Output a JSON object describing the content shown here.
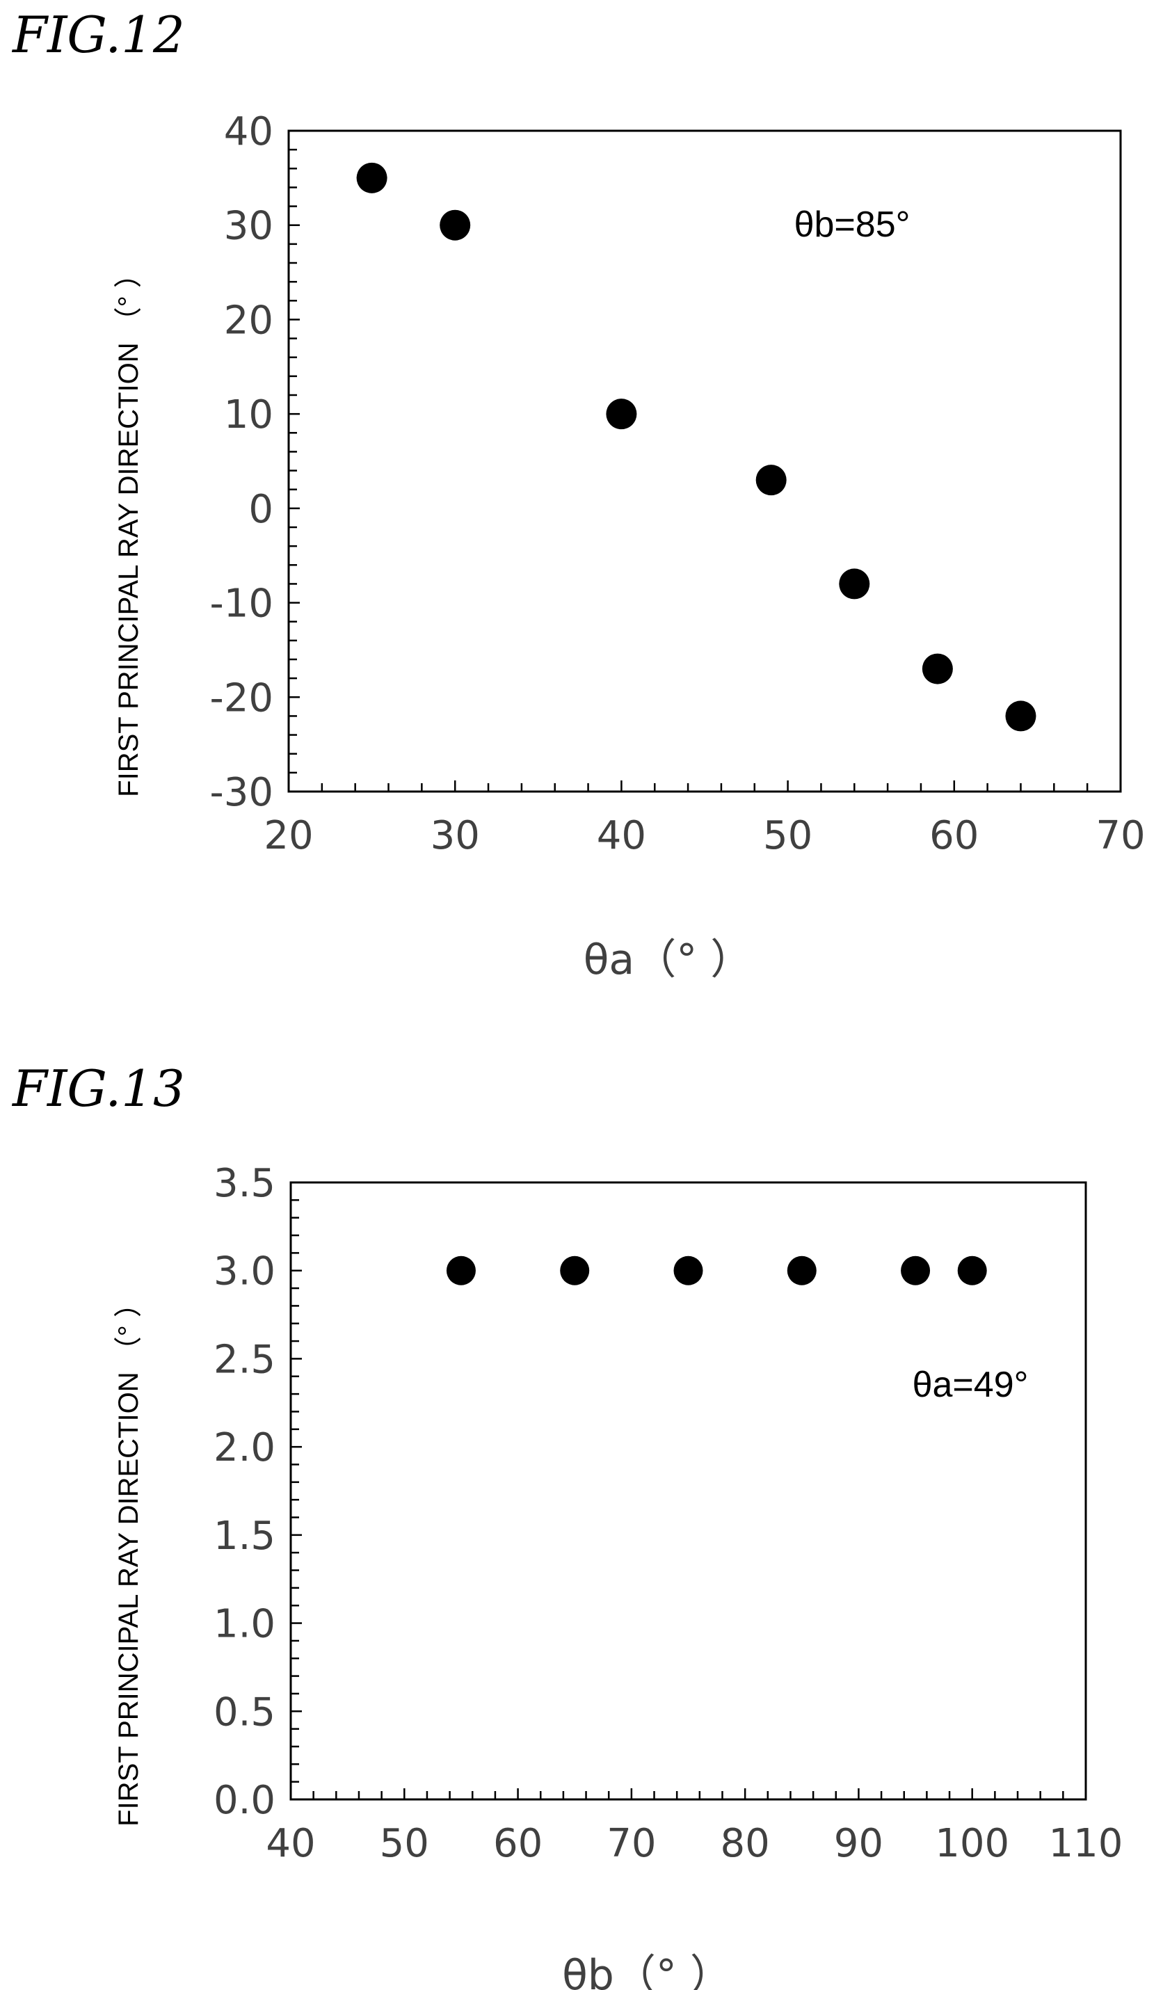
{
  "figures": [
    {
      "label": "FIG.12",
      "chart_data": {
        "type": "scatter",
        "x": [
          25,
          30,
          40,
          49,
          54,
          59,
          64
        ],
        "y": [
          35,
          30,
          10,
          3,
          -8,
          -17,
          -22
        ],
        "xlabel": "θa（°  ）",
        "ylabel": "FIRST PRINCIPAL RAY DIRECTION （°  ）",
        "xlim": [
          20,
          70
        ],
        "ylim": [
          -30,
          40
        ],
        "xticks": [
          20,
          30,
          40,
          50,
          60,
          70
        ],
        "yticks": [
          -30,
          -20,
          -10,
          0,
          10,
          20,
          30,
          40
        ],
        "xtick_labels": [
          "20",
          "30",
          "40",
          "50",
          "60",
          "70"
        ],
        "ytick_labels": [
          "-30",
          "-20",
          "-10",
          "0",
          "10",
          "20",
          "30",
          "40"
        ],
        "x_minor_step": 2,
        "y_minor_step": 2,
        "annotation": "θb=85°",
        "grid": false
      }
    },
    {
      "label": "FIG.13",
      "chart_data": {
        "type": "scatter",
        "x": [
          55,
          65,
          75,
          85,
          95,
          100
        ],
        "y": [
          3.0,
          3.0,
          3.0,
          3.0,
          3.0,
          3.0
        ],
        "xlabel": "θb（°  ）",
        "ylabel": "FIRST PRINCIPAL RAY DIRECTION （°  ）",
        "xlim": [
          40,
          110
        ],
        "ylim": [
          0.0,
          3.5
        ],
        "xticks": [
          40,
          50,
          60,
          70,
          80,
          90,
          100,
          110
        ],
        "yticks": [
          0.0,
          0.5,
          1.0,
          1.5,
          2.0,
          2.5,
          3.0,
          3.5
        ],
        "xtick_labels": [
          "40",
          "50",
          "60",
          "70",
          "80",
          "90",
          "100",
          "110"
        ],
        "ytick_labels": [
          "0.0",
          "0.5",
          "1.0",
          "1.5",
          "2.0",
          "2.5",
          "3.0",
          "3.5"
        ],
        "x_minor_step": 2,
        "y_minor_step": 0.1,
        "annotation": "θa=49°",
        "grid": false
      }
    }
  ]
}
